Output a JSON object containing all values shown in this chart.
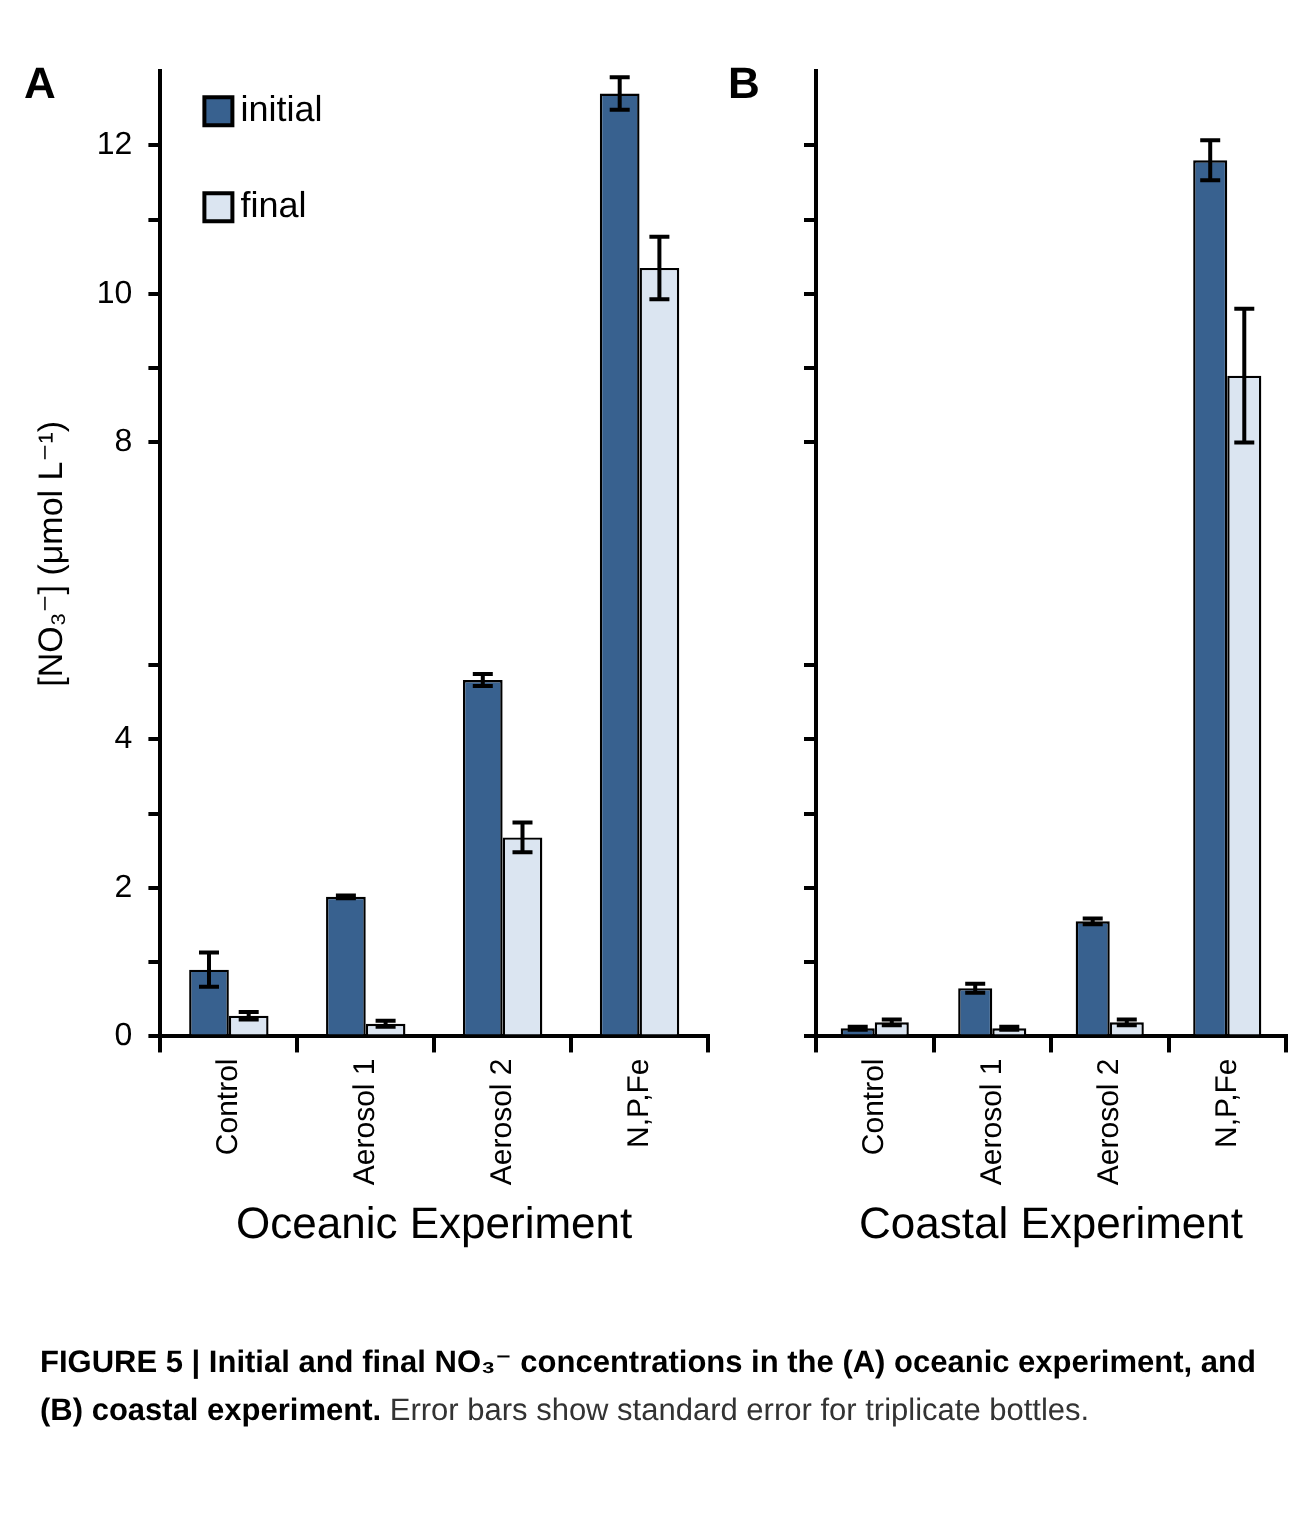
{
  "chart_data": [
    {
      "type": "bar",
      "categories": [
        "Control",
        "Aerosol 1",
        "Aerosol 2",
        "N,P,Fe"
      ],
      "xlabel": "Oceanic Experiment",
      "ylabel": "[NO₃⁻] (μmol L⁻¹)",
      "series": [
        {
          "name": "initial",
          "color": "#38618f",
          "values": [
            0.9,
            1.88,
            4.8,
            12.7
          ],
          "errors": [
            0.23,
            0.02,
            0.08,
            0.22
          ]
        },
        {
          "name": "final",
          "color": "#dbe5f1",
          "values": [
            0.28,
            0.17,
            2.68,
            10.35
          ],
          "errors": [
            0.05,
            0.04,
            0.2,
            0.42
          ]
        }
      ],
      "ylim": [
        0,
        13
      ],
      "yticks": [
        0,
        {
          "value": 1,
          "label": null
        },
        2,
        {
          "value": 3,
          "label": null
        },
        4,
        {
          "value": 5,
          "label": null
        },
        8,
        {
          "value": 9,
          "label": null
        },
        10,
        {
          "value": 11,
          "label": null
        },
        12
      ],
      "legend": "top left",
      "annotations": [
        "A",
        "FIGURE 5 | Initial and final NO₃⁻ concentrations in the (A) oceanic experiment, and (B) coastal experiment.",
        "Error bars show standard error for triplicate bottles."
      ]
    },
    {
      "type": "bar",
      "categories": [
        "Control",
        "Aerosol 1",
        "Aerosol 2",
        "N,P,Fe"
      ],
      "xlabel": "Coastal Experiment",
      "series": [
        {
          "color": "#38618f",
          "values": [
            0.11,
            0.65,
            1.55,
            11.8
          ],
          "errors": [
            0.02,
            0.06,
            0.04,
            0.27
          ]
        },
        {
          "color": "#dbe5f1",
          "values": [
            0.19,
            0.11,
            0.19,
            8.9
          ],
          "errors": [
            0.04,
            0.02,
            0.04,
            0.9
          ]
        }
      ],
      "ylim": [
        0,
        13
      ],
      "yticks": [
        0,
        {
          "value": 1,
          "label": null
        },
        2,
        {
          "value": 3,
          "label": null
        },
        4,
        {
          "value": 5,
          "label": null
        },
        8,
        {
          "value": 9,
          "label": null
        },
        10,
        {
          "value": 11,
          "label": null
        },
        12
      ],
      "tick_labels": "x",
      "annotations": [
        "B"
      ]
    }
  ]
}
